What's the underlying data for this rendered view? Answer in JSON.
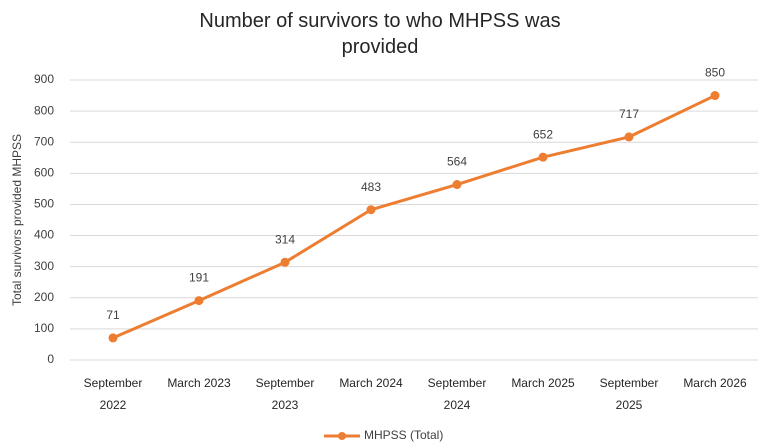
{
  "chart_data": {
    "type": "line",
    "title": "Number of survivors to who MHPSS was provided",
    "y_label": "Total survivors provided MHPSS",
    "categories": [
      "September 2022",
      "March 2023",
      "September 2023",
      "March 2024",
      "September 2024",
      "March 2025",
      "September 2025",
      "March 2026"
    ],
    "series": [
      {
        "name": "MHPSS (Total)",
        "color": "#ed7d31",
        "values": [
          71,
          191,
          314,
          483,
          564,
          652,
          717,
          850
        ]
      }
    ],
    "ylim": [
      0,
      900
    ],
    "yticks": [
      0,
      100,
      200,
      300,
      400,
      500,
      600,
      700,
      800,
      900
    ],
    "grid": true,
    "legend": "bottom"
  }
}
